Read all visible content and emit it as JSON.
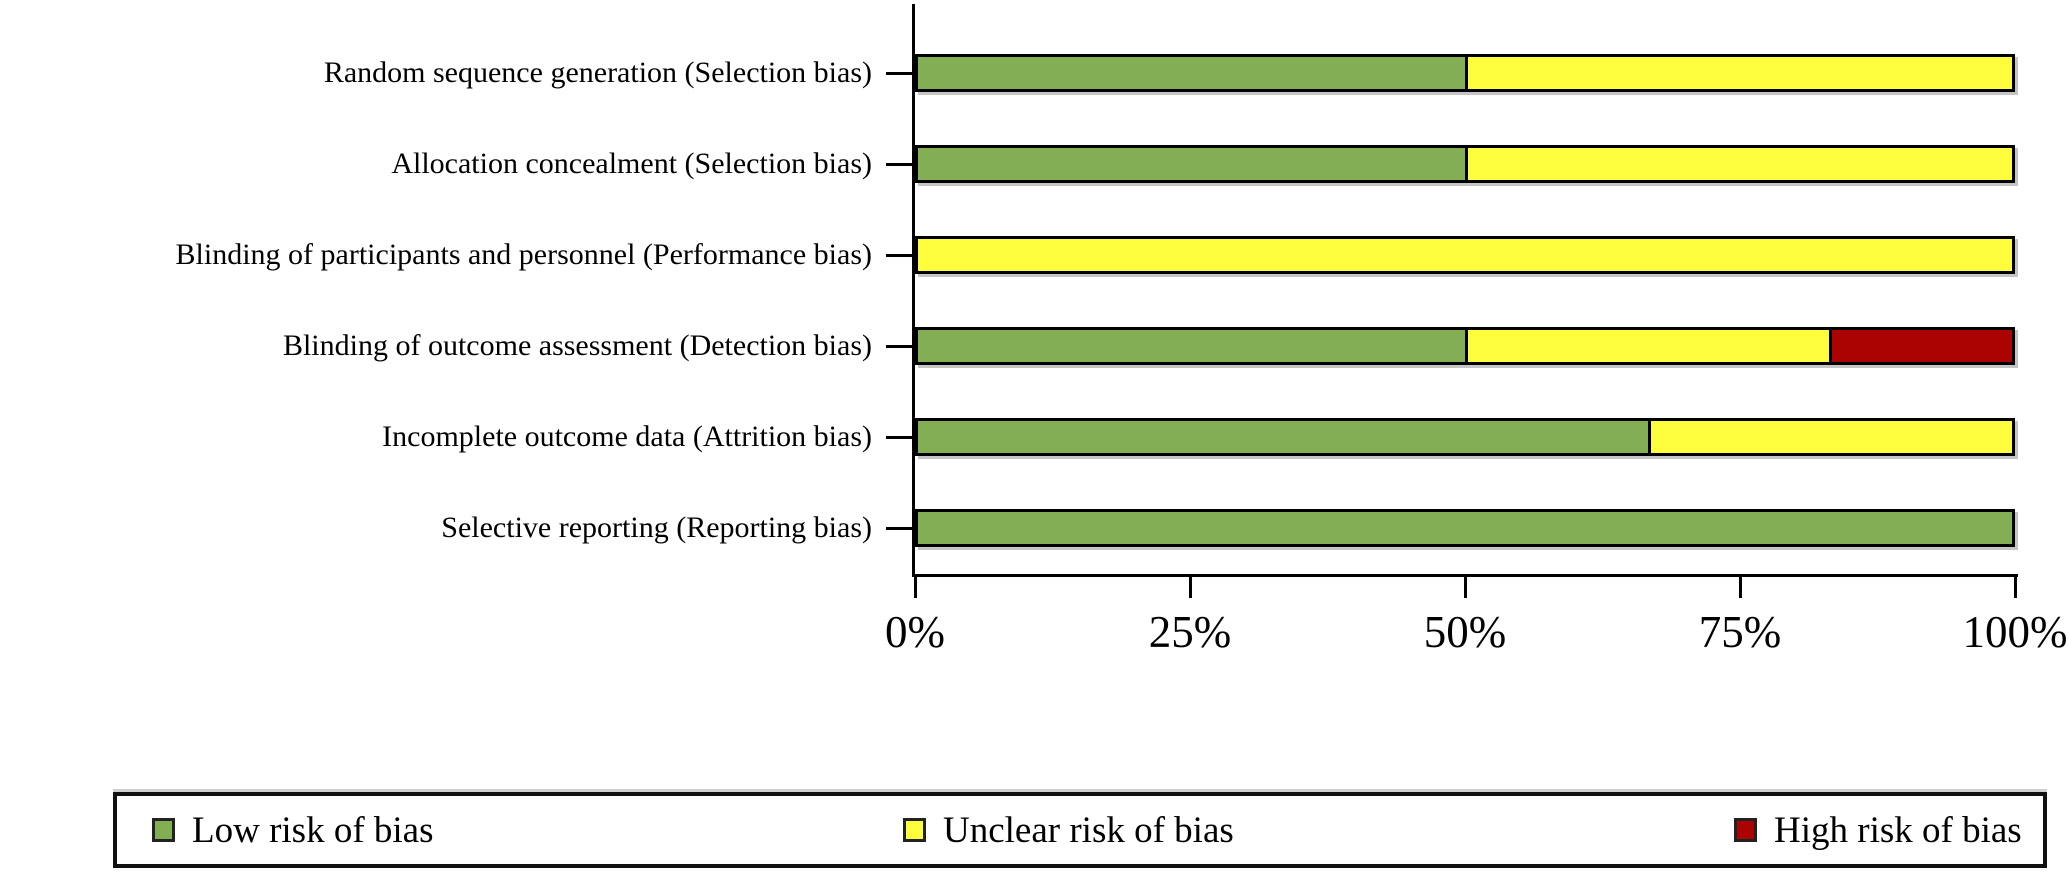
{
  "chart_data": {
    "type": "bar",
    "orientation": "horizontal_stacked",
    "title": "",
    "xlabel": "",
    "ylabel": "",
    "categories": [
      "Random sequence generation (Selection bias)",
      "Allocation concealment (Selection bias)",
      "Blinding of participants and personnel (Performance bias)",
      "Blinding of outcome assessment (Detection bias)",
      "Incomplete outcome data (Attrition bias)",
      "Selective reporting (Reporting bias)"
    ],
    "series": [
      {
        "name": "Low risk of bias",
        "color": "#83AE53",
        "values": [
          50,
          50,
          0,
          50,
          66.7,
          100
        ]
      },
      {
        "name": "Unclear risk of bias",
        "color": "#FDFD3E",
        "values": [
          50,
          50,
          100,
          33.3,
          33.3,
          0
        ]
      },
      {
        "name": "High risk of bias",
        "color": "#AB0301",
        "values": [
          0,
          0,
          0,
          16.7,
          0,
          0
        ]
      }
    ],
    "xlim": [
      0,
      100
    ],
    "x_tick_labels": [
      "0%",
      "25%",
      "50%",
      "75%",
      "100%"
    ],
    "grid": false,
    "legend_position": "bottom"
  },
  "legend": {
    "items": [
      {
        "label": "Low risk of bias",
        "color": "#83AE53"
      },
      {
        "label": "Unclear risk of bias",
        "color": "#FDFD3E"
      },
      {
        "label": "High risk of bias",
        "color": "#AB0301"
      }
    ]
  },
  "colors": {
    "low_risk": "#83AE53",
    "unclear_risk": "#FDFD3E",
    "high_risk": "#AB0301",
    "axis": "#000000",
    "background": "#FFFFFF"
  }
}
